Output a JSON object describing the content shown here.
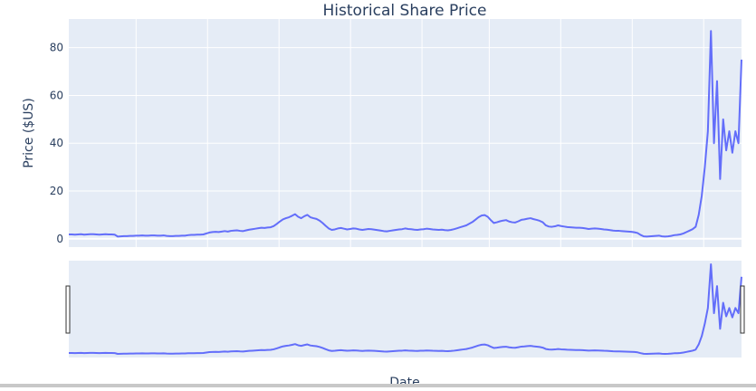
{
  "chart_data": {
    "type": "line",
    "title": "Historical Share Price",
    "xlabel": "Date",
    "ylabel": "Price ($US)",
    "ylim": [
      -3.5,
      92
    ],
    "grid": true,
    "show_x_tick_labels": false,
    "range_slider": true,
    "yticks": [
      0,
      20,
      40,
      60,
      80
    ],
    "x_index_range": [
      0,
      320
    ],
    "x_grid_index": [
      32,
      66,
      100,
      134,
      168,
      200,
      234,
      268,
      302
    ],
    "colors": {
      "line": "#636efa",
      "plot_bg": "#e5ecf6",
      "grid": "#ffffff",
      "text": "#2a3f5f"
    },
    "series": [
      {
        "values": [
          1.8,
          1.8,
          1.7,
          1.8,
          1.9,
          1.7,
          1.8,
          1.9,
          1.9,
          1.8,
          1.7,
          1.8,
          1.9,
          1.8,
          1.8,
          1.7,
          0.9,
          1.0,
          1.1,
          1.1,
          1.2,
          1.2,
          1.3,
          1.3,
          1.4,
          1.3,
          1.3,
          1.4,
          1.4,
          1.3,
          1.3,
          1.4,
          1.2,
          1.1,
          1.1,
          1.2,
          1.2,
          1.3,
          1.3,
          1.5,
          1.6,
          1.6,
          1.7,
          1.7,
          1.8,
          2.2,
          2.6,
          2.8,
          2.9,
          2.8,
          3.0,
          3.2,
          3.0,
          3.3,
          3.4,
          3.5,
          3.3,
          3.2,
          3.5,
          3.8,
          4.0,
          4.2,
          4.4,
          4.6,
          4.5,
          4.7,
          4.8,
          5.3,
          6.2,
          7.2,
          8.1,
          8.6,
          9.0,
          9.6,
          10.3,
          9.2,
          8.6,
          9.4,
          10.0,
          9.0,
          8.6,
          8.3,
          7.6,
          6.6,
          5.4,
          4.3,
          3.7,
          3.9,
          4.3,
          4.5,
          4.2,
          3.9,
          4.1,
          4.3,
          4.2,
          3.9,
          3.7,
          3.9,
          4.1,
          4.0,
          3.8,
          3.6,
          3.4,
          3.2,
          3.1,
          3.3,
          3.5,
          3.7,
          3.9,
          4.0,
          4.3,
          4.1,
          4.0,
          3.8,
          3.7,
          3.9,
          4.0,
          4.2,
          4.1,
          3.9,
          3.8,
          3.7,
          3.8,
          3.6,
          3.5,
          3.7,
          4.0,
          4.4,
          4.8,
          5.2,
          5.6,
          6.3,
          7.0,
          8.0,
          9.0,
          9.7,
          9.9,
          9.2,
          7.8,
          6.6,
          6.9,
          7.3,
          7.6,
          7.8,
          7.2,
          6.9,
          6.8,
          7.3,
          7.9,
          8.1,
          8.4,
          8.6,
          8.2,
          7.9,
          7.5,
          6.9,
          5.6,
          5.1,
          5.0,
          5.2,
          5.6,
          5.3,
          5.1,
          4.9,
          4.8,
          4.7,
          4.6,
          4.6,
          4.5,
          4.3,
          4.1,
          4.2,
          4.3,
          4.2,
          4.1,
          3.9,
          3.8,
          3.6,
          3.4,
          3.3,
          3.3,
          3.2,
          3.1,
          3.0,
          2.9,
          2.7,
          2.4,
          1.6,
          1.0,
          0.9,
          1.0,
          1.1,
          1.2,
          1.3,
          1.0,
          0.9,
          1.0,
          1.2,
          1.5,
          1.6,
          1.8,
          2.2,
          2.8,
          3.4,
          4.0,
          5.0,
          10.0,
          18.0,
          30.0,
          45.0,
          87.0,
          40.0,
          66.0,
          25.0,
          50.0,
          37.0,
          45.0,
          36.0,
          45.0,
          40.0,
          75.0
        ]
      }
    ]
  }
}
